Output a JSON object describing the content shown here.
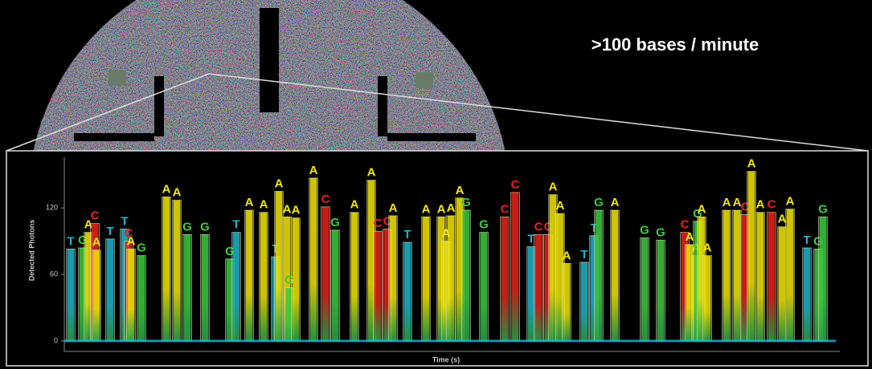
{
  "chart_data": {
    "type": "pulse-trace",
    "title": ">100 bases / minute",
    "y_label": "Detected Photons",
    "x_label": "Time (s)",
    "ylim": [
      0,
      160
    ],
    "yticks": [
      0,
      60,
      120
    ],
    "xlim": [
      0,
      96
    ],
    "base_colors": {
      "A": "#f2e600",
      "C": "#e8231a",
      "G": "#3ecb3e",
      "T": "#1fb5c9"
    },
    "base_calls": [
      "T",
      "G",
      "A",
      "C",
      "A",
      "T",
      "T",
      "C",
      "A",
      "G",
      "A",
      "A",
      "G",
      "G",
      "G",
      "T",
      "A",
      "A",
      "T",
      "A",
      "A",
      "G",
      "A",
      "A",
      "C",
      "G",
      "A",
      "A",
      "C",
      "C",
      "A",
      "T",
      "A",
      "A",
      "A",
      "A",
      "A",
      "G",
      "G",
      "C",
      "C",
      "T",
      "C",
      "C",
      "A",
      "A",
      "A",
      "T",
      "T",
      "G",
      "A",
      "G",
      "G",
      "C",
      "A",
      "A",
      "G",
      "A",
      "A",
      "A",
      "A",
      "C",
      "A",
      "A",
      "C",
      "A",
      "A",
      "T",
      "G",
      "G"
    ],
    "x": [
      0.8,
      2.3,
      3.0,
      3.8,
      4.0,
      5.7,
      7.5,
      8.0,
      8.3,
      9.6,
      12.7,
      14.0,
      15.3,
      17.5,
      20.6,
      21.4,
      23.0,
      24.8,
      26.3,
      26.7,
      27.7,
      28.0,
      28.8,
      31.0,
      32.5,
      33.7,
      36.1,
      38.2,
      39.0,
      40.2,
      40.9,
      42.7,
      45.0,
      46.9,
      47.5,
      48.1,
      49.2,
      50.0,
      52.2,
      54.8,
      56.1,
      58.1,
      59.0,
      60.2,
      60.8,
      61.7,
      62.5,
      64.7,
      65.9,
      66.5,
      68.5,
      72.2,
      74.2,
      77.2,
      77.8,
      78.6,
      78.8,
      79.3,
      80.0,
      82.4,
      83.7,
      84.7,
      85.5,
      86.6,
      88.0,
      89.3,
      90.3,
      92.4,
      93.8,
      94.4
    ],
    "values": [
      83,
      84,
      98,
      106,
      82,
      92,
      101,
      90,
      83,
      77,
      130,
      127,
      96,
      96,
      74,
      98,
      118,
      116,
      76,
      135,
      112,
      48,
      111,
      147,
      121,
      100,
      116,
      145,
      99,
      101,
      113,
      89,
      112,
      112,
      90,
      113,
      129,
      118,
      98,
      112,
      134,
      85,
      96,
      96,
      132,
      115,
      70,
      71,
      95,
      118,
      118,
      93,
      91,
      98,
      87,
      77,
      108,
      112,
      77,
      118,
      118,
      114,
      153,
      116,
      116,
      103,
      119,
      84,
      83,
      112
    ]
  }
}
